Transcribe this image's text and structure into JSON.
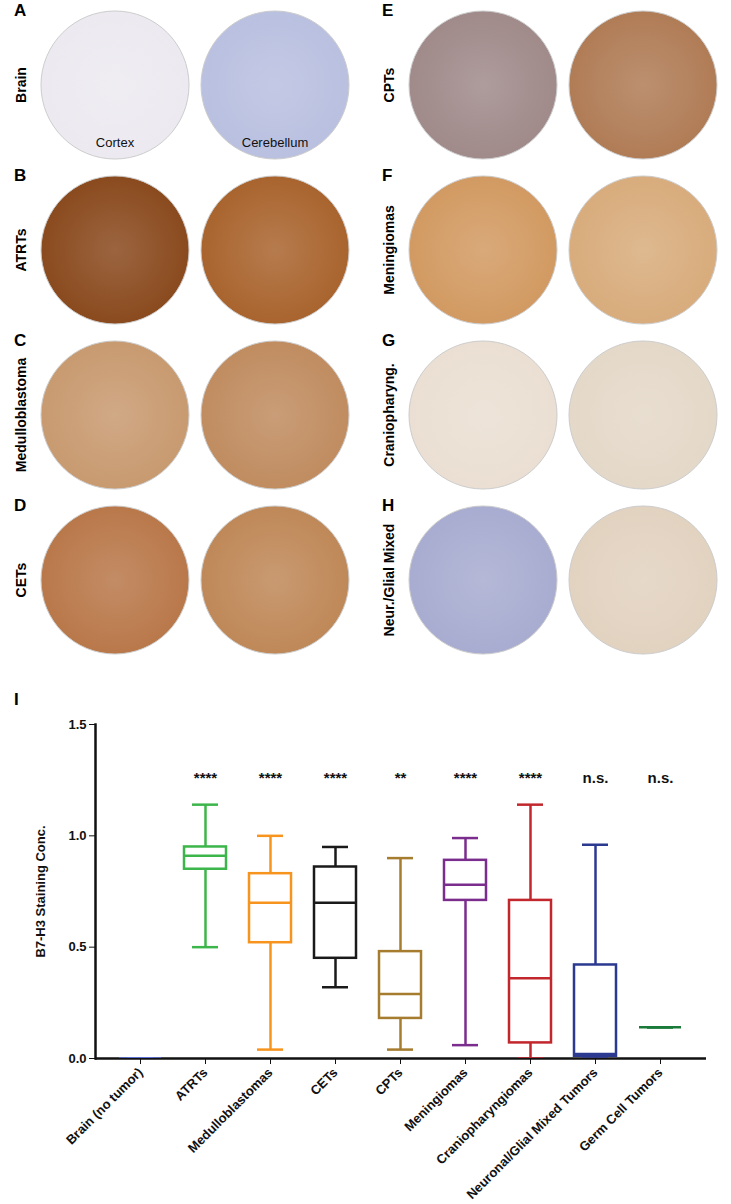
{
  "figure": {
    "panels": [
      {
        "letter": "A",
        "label": "Brain",
        "sublabels": [
          "Cortex",
          "Cerebellum"
        ]
      },
      {
        "letter": "B",
        "label": "ATRTs",
        "sublabels": []
      },
      {
        "letter": "C",
        "label": "Medulloblastoma",
        "sublabels": []
      },
      {
        "letter": "D",
        "label": "CETs",
        "sublabels": []
      },
      {
        "letter": "E",
        "label": "CPTs",
        "sublabels": []
      },
      {
        "letter": "F",
        "label": "Meningiomas",
        "sublabels": []
      },
      {
        "letter": "G",
        "label": "Craniopharyng.",
        "sublabels": []
      },
      {
        "letter": "H",
        "label": "Neur./Glial Mixed",
        "sublabels": []
      }
    ],
    "chart_letter": "I"
  },
  "chart_data": {
    "type": "box",
    "y_label": "B7-H3 Staining Conc.",
    "categories": [
      "Brain (no tumor)",
      "ATRTs",
      "Medulloblastomas",
      "CETs",
      "CPTs",
      "Meningiomas",
      "Craniopharyngiomas",
      "Neuronal/Glial Mixed Tumors",
      "Germ Cell Tumors"
    ],
    "min": [
      0,
      0.5,
      0.04,
      0.32,
      0.04,
      0.06,
      0,
      0,
      0.14
    ],
    "q1": [
      0,
      0.85,
      0.52,
      0.45,
      0.18,
      0.71,
      0.07,
      0.01,
      0.14
    ],
    "median": [
      0,
      0.91,
      0.7,
      0.7,
      0.29,
      0.78,
      0.36,
      0.02,
      0.14
    ],
    "q3": [
      0,
      0.95,
      0.83,
      0.86,
      0.48,
      0.89,
      0.71,
      0.42,
      0.14
    ],
    "max": [
      0,
      1.14,
      1.0,
      0.95,
      0.9,
      0.99,
      1.14,
      0.96,
      0.14
    ],
    "significance": [
      null,
      "****",
      "****",
      "****",
      "**",
      "****",
      "****",
      "n.s.",
      "n.s."
    ],
    "colors": [
      "#5b6fd6",
      "#3cb54a",
      "#f7941d",
      "#1a1a1a",
      "#a67c2e",
      "#7b2d8e",
      "#c1272d",
      "#2b3990",
      "#1a7a3a"
    ],
    "ylim": [
      0,
      1.5
    ],
    "yticks": [
      {
        "value": 0,
        "label": "0.0"
      },
      {
        "value": 0.5,
        "label": "0.5"
      },
      {
        "value": 1,
        "label": "1.0"
      },
      {
        "value": 1.5,
        "label": "1.5"
      }
    ]
  }
}
